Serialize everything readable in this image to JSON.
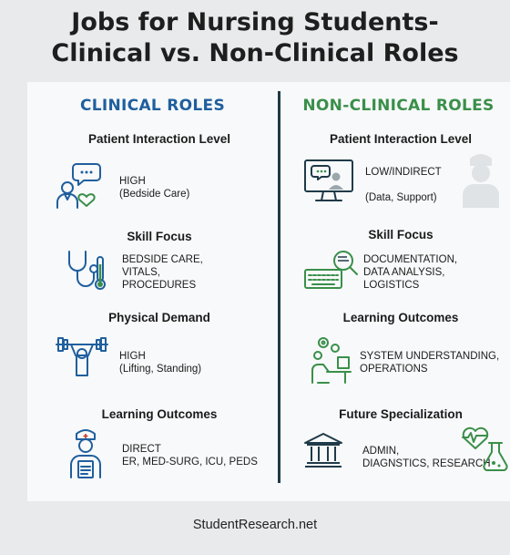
{
  "title": {
    "line1": "Jobs for Nursing Students-",
    "line2": "Clinical vs. Non-Clinical Roles"
  },
  "clinical": {
    "heading": "CLINICAL ROLES",
    "sections": [
      {
        "title": "Patient Interaction Level",
        "lines": [
          "HIGH",
          "(Bedside Care)"
        ],
        "icon": "nurse-chat-heart-icon"
      },
      {
        "title": "Skill Focus",
        "lines": [
          "BEDSIDE CARE,",
          "VITALS,",
          "PROCEDURES"
        ],
        "icon": "stethoscope-thermometer-icon"
      },
      {
        "title": "Physical Demand",
        "lines": [
          "HIGH",
          "(Lifting, Standing)"
        ],
        "icon": "weightlifter-icon"
      },
      {
        "title": "Learning Outcomes",
        "lines": [
          "DIRECT",
          "ER, MED-SURG, ICU, PEDS"
        ],
        "icon": "nurse-clipboard-icon"
      }
    ]
  },
  "nonclinical": {
    "heading": "NON-CLINICAL ROLES",
    "sections": [
      {
        "title": "Patient Interaction Level",
        "lines": [
          "LOW/INDIRECT",
          "(Data, Support)"
        ],
        "icon": "computer-monitor-icon"
      },
      {
        "title": "Skill Focus",
        "lines": [
          "DOCUMENTATION,",
          "DATA ANALYSIS,",
          "LOGISTICS"
        ],
        "icon": "keyboard-magnifier-icon"
      },
      {
        "title": "Learning Outcomes",
        "lines": [
          "SYSTEM UNDERSTANDING,",
          "OPERATIONS"
        ],
        "icon": "desk-worker-gears-icon"
      },
      {
        "title": "Future Specialization",
        "lines": [
          "ADMIN,",
          "DIAGNSTICS, RESEARCH"
        ],
        "icon": "institution-building-icon"
      }
    ]
  },
  "footer": "StudentResearch.net",
  "colors": {
    "clinical": "#1f5f9e",
    "nonclinical": "#3a8f4a",
    "divider": "#1f3a48"
  }
}
